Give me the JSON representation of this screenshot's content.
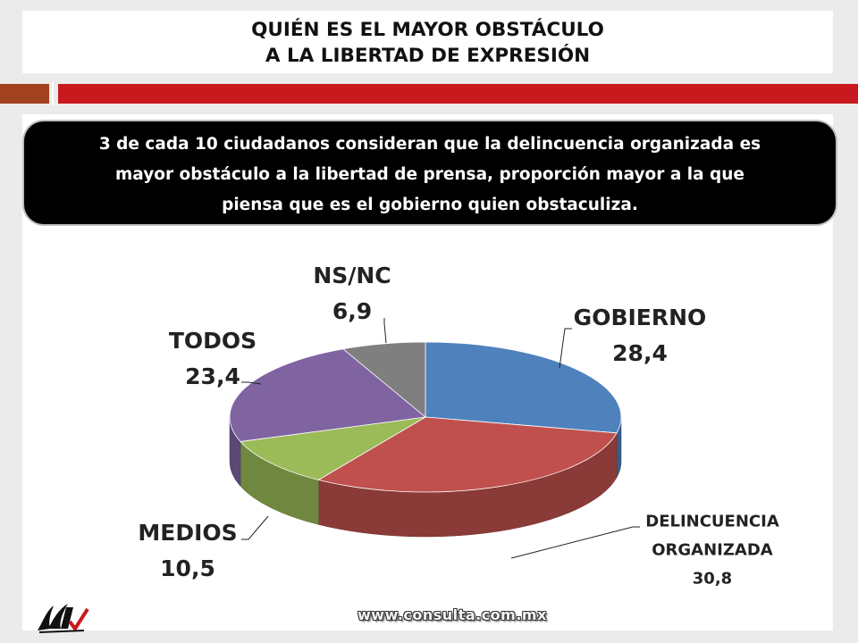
{
  "header": {
    "title_line1": "QUIÉN ES EL MAYOR OBSTÁCULO",
    "title_line2": "A LA LIBERTAD DE EXPRESIÓN"
  },
  "callout": {
    "line1": "3 de cada 10 ciudadanos consideran que la delincuencia organizada es",
    "line2": "mayor obstáculo a la libertad de prensa, proporción mayor a la que",
    "line3": "piensa que es el gobierno quien obstaculiza."
  },
  "footer": {
    "url": "www.consulta.com.mx",
    "logo_icon": "consulta-mitofsky-logo-icon"
  },
  "colors": {
    "accent_red": "#c8191e",
    "accent_brown": "#a2411d",
    "gobierno": "#4f81bd",
    "delincuencia": "#c0504d",
    "medios": "#9bbb59",
    "todos": "#8064a2",
    "nsnc": "#7f7f7f"
  },
  "chart_data": {
    "type": "pie",
    "title": "",
    "categories": [
      "GOBIERNO",
      "DELINCUENCIA ORGANIZADA",
      "MEDIOS",
      "TODOS",
      "NS/NC"
    ],
    "values": [
      28.4,
      30.8,
      10.5,
      23.4,
      6.9
    ],
    "value_labels": [
      "28,4",
      "30,8",
      "10,5",
      "23,4",
      "6,9"
    ],
    "label_lines": [
      [
        "GOBIERNO",
        "28,4"
      ],
      [
        "DELINCUENCIA",
        "ORGANIZADA",
        "30,8"
      ],
      [
        "MEDIOS",
        "10,5"
      ],
      [
        "TODOS",
        "23,4"
      ],
      [
        "NS/NC",
        "6,9"
      ]
    ],
    "style": "3d-pie",
    "legend": "none"
  }
}
